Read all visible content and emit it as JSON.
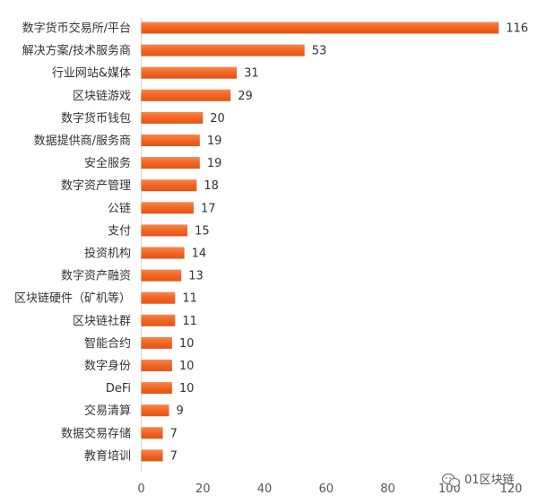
{
  "chart_data": {
    "type": "bar",
    "orientation": "horizontal",
    "categories": [
      "数字货币交易所/平台",
      "解决方案/技术服务商",
      "行业网站&媒体",
      "区块链游戏",
      "数字货币钱包",
      "数据提供商/服务商",
      "安全服务",
      "数字资产管理",
      "公链",
      "支付",
      "投资机构",
      "数字资产融资",
      "区块链硬件（矿机等）",
      "区块链社群",
      "智能合约",
      "数字身份",
      "DeFi",
      "交易清算",
      "数据交易存储",
      "教育培训"
    ],
    "values": [
      116,
      53,
      31,
      29,
      20,
      19,
      19,
      18,
      17,
      15,
      14,
      13,
      11,
      11,
      10,
      10,
      10,
      9,
      7,
      7
    ],
    "xticks": [
      "0",
      "20",
      "40",
      "60",
      "80",
      "100",
      "120"
    ],
    "xlim": [
      0,
      120
    ],
    "grid": false,
    "bar_color": "#F26522"
  },
  "watermark": {
    "icon": "wechat-icon",
    "text": "01区块链"
  }
}
